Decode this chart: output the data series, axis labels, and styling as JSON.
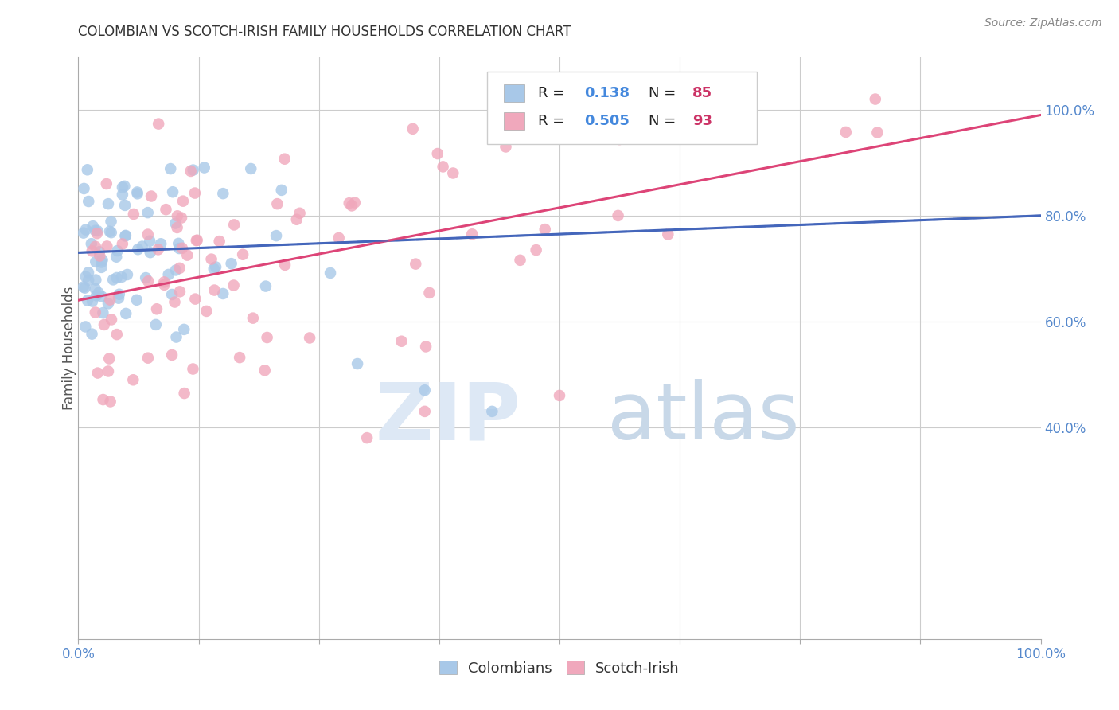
{
  "title": "COLOMBIAN VS SCOTCH-IRISH FAMILY HOUSEHOLDS CORRELATION CHART",
  "source": "Source: ZipAtlas.com",
  "ylabel": "Family Households",
  "legend_labels": [
    "Colombians",
    "Scotch-Irish"
  ],
  "R_colombian": 0.138,
  "N_colombian": 85,
  "R_scotch": 0.505,
  "N_scotch": 93,
  "blue_dot_color": "#a8c8e8",
  "pink_dot_color": "#f0a8bc",
  "blue_line_color": "#4466bb",
  "pink_line_color": "#dd4477",
  "background_color": "#ffffff",
  "grid_color": "#cccccc",
  "right_label_color": "#5588cc",
  "title_color": "#333333",
  "source_color": "#888888",
  "legend_text_color": "#222222",
  "legend_value_color": "#4488dd",
  "legend_n_color": "#cc3366",
  "watermark_zip_color": "#dde8f5",
  "watermark_atlas_color": "#c8d8e8"
}
